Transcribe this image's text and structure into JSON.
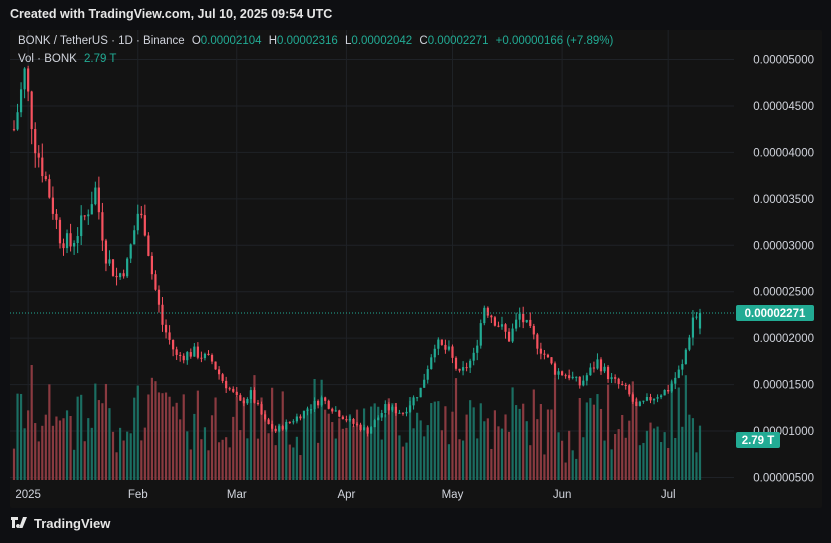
{
  "header": {
    "caption": "Created with TradingView.com, Jul 10, 2025 09:54 UTC"
  },
  "legend": {
    "symbol": "BONK / TetherUS · 1D · Binance",
    "open_label": "O",
    "open": "0.00002104",
    "high_label": "H",
    "high": "0.00002316",
    "low_label": "L",
    "low": "0.00002042",
    "close_label": "C",
    "close": "0.00002271",
    "change": "+0.00000166 (+7.89%)",
    "vol_label": "Vol · BONK",
    "vol_value": "2.79 T"
  },
  "footer": {
    "brand": "TradingView"
  },
  "colors": {
    "up": "#22ab94",
    "down": "#f7525f",
    "up_volume": "#1b6e62",
    "down_volume": "#8a3a40",
    "grid": "#1f2227",
    "price_badge": "#22ab94"
  },
  "chart_data": {
    "type": "candlestick",
    "symbol": "BONK / TetherUS",
    "interval": "1D",
    "exchange": "Binance",
    "ylim": [
      5e-06,
      5e-05
    ],
    "y_ticks": [
      "0.00005000",
      "0.00004500",
      "0.00004000",
      "0.00003500",
      "0.00003000",
      "0.00002500",
      "0.00002000",
      "0.00001500",
      "0.00001000",
      "0.00000500"
    ],
    "x_ticks": [
      "2025",
      "Feb",
      "Mar",
      "Apr",
      "May",
      "Jun",
      "Jul"
    ],
    "last_price": "0.00002271",
    "last_volume": "2.79 T",
    "price_path": [
      [
        "2024-12-28",
        4.25e-05
      ],
      [
        "2024-12-31",
        4.85e-05
      ],
      [
        "2025-01-03",
        4.1e-05
      ],
      [
        "2025-01-06",
        3.7e-05
      ],
      [
        "2025-01-10",
        3.1e-05
      ],
      [
        "2025-01-13",
        3e-05
      ],
      [
        "2025-01-17",
        3.3e-05
      ],
      [
        "2025-01-20",
        3.6e-05
      ],
      [
        "2025-01-23",
        2.9e-05
      ],
      [
        "2025-01-26",
        2.65e-05
      ],
      [
        "2025-01-29",
        2.8e-05
      ],
      [
        "2025-02-01",
        3.35e-05
      ],
      [
        "2025-02-03",
        3.2e-05
      ],
      [
        "2025-02-05",
        2.7e-05
      ],
      [
        "2025-02-08",
        2.15e-05
      ],
      [
        "2025-02-12",
        1.8e-05
      ],
      [
        "2025-02-17",
        1.85e-05
      ],
      [
        "2025-02-22",
        1.75e-05
      ],
      [
        "2025-02-25",
        1.55e-05
      ],
      [
        "2025-03-02",
        1.3e-05
      ],
      [
        "2025-03-05",
        1.4e-05
      ],
      [
        "2025-03-09",
        1.1e-05
      ],
      [
        "2025-03-12",
        1e-05
      ],
      [
        "2025-03-18",
        1.15e-05
      ],
      [
        "2025-03-25",
        1.35e-05
      ],
      [
        "2025-03-28",
        1.25e-05
      ],
      [
        "2025-04-02",
        1.1e-05
      ],
      [
        "2025-04-07",
        1e-05
      ],
      [
        "2025-04-12",
        1.25e-05
      ],
      [
        "2025-04-17",
        1.2e-05
      ],
      [
        "2025-04-22",
        1.45e-05
      ],
      [
        "2025-04-26",
        1.95e-05
      ],
      [
        "2025-04-30",
        1.85e-05
      ],
      [
        "2025-05-03",
        1.6e-05
      ],
      [
        "2025-05-07",
        1.8e-05
      ],
      [
        "2025-05-10",
        2.35e-05
      ],
      [
        "2025-05-14",
        2.15e-05
      ],
      [
        "2025-05-17",
        2e-05
      ],
      [
        "2025-05-20",
        2.25e-05
      ],
      [
        "2025-05-24",
        2e-05
      ],
      [
        "2025-05-30",
        1.65e-05
      ],
      [
        "2025-06-03",
        1.6e-05
      ],
      [
        "2025-06-06",
        1.5e-05
      ],
      [
        "2025-06-11",
        1.75e-05
      ],
      [
        "2025-06-15",
        1.55e-05
      ],
      [
        "2025-06-19",
        1.45e-05
      ],
      [
        "2025-06-22",
        1.25e-05
      ],
      [
        "2025-06-26",
        1.35e-05
      ],
      [
        "2025-07-01",
        1.45e-05
      ],
      [
        "2025-07-05",
        1.7e-05
      ],
      [
        "2025-07-08",
        2.22e-05
      ],
      [
        "2025-07-10",
        2.27e-05
      ]
    ]
  }
}
